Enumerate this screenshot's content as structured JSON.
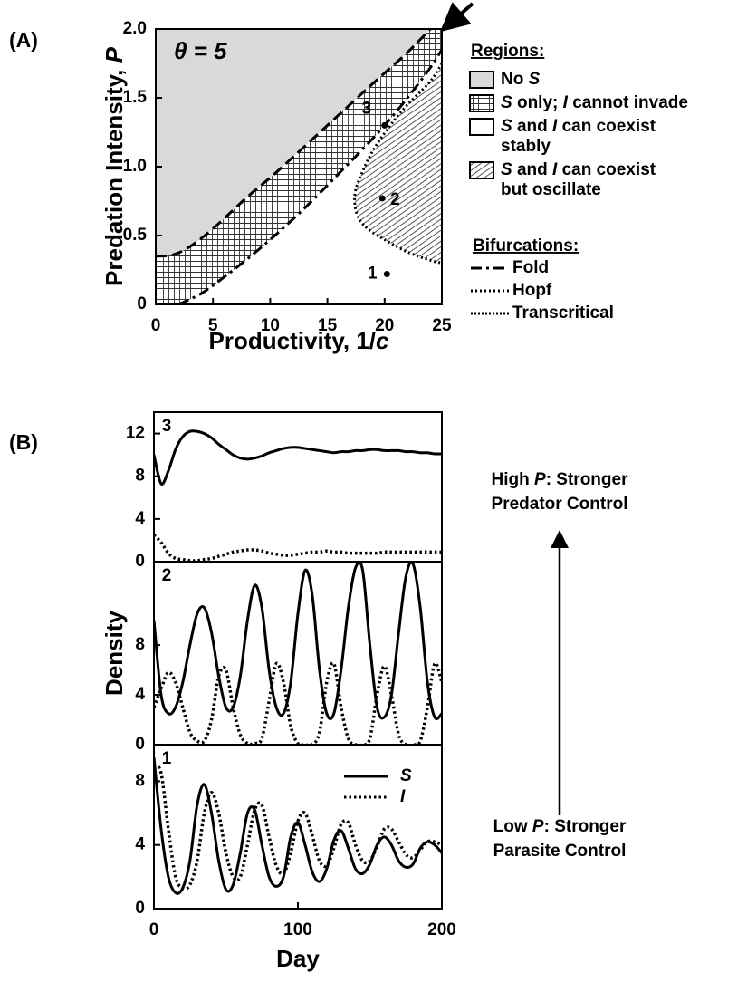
{
  "chart_data": [
    {
      "type": "region",
      "panel": "(A)",
      "annotation": "θ = 5",
      "xlabel": "Productivity, 1/c",
      "ylabel": "Predation Intensity, P",
      "xlim": [
        0,
        25
      ],
      "ylim": [
        0,
        2
      ],
      "xticks": [
        0,
        5,
        10,
        15,
        20,
        25
      ],
      "yticks": [
        0,
        0.5,
        {
          "value": 1,
          "label": "1.0"
        },
        1.5,
        {
          "value": 2,
          "label": "2.0"
        }
      ],
      "boundaries": [
        {
          "dash": "12 6",
          "x": [
            0,
            1.5,
            3,
            5,
            8,
            10,
            12,
            15,
            18,
            20,
            22,
            24
          ],
          "y": [
            0.35,
            0.36,
            0.42,
            0.55,
            0.78,
            0.92,
            1.07,
            1.3,
            1.53,
            1.68,
            1.83,
            2.0
          ]
        },
        {
          "dash": "12 5 3 5",
          "x": [
            2,
            4,
            6,
            8,
            10,
            12,
            14,
            16,
            18,
            20,
            22,
            24,
            25
          ],
          "y": [
            0,
            0.08,
            0.2,
            0.33,
            0.47,
            0.62,
            0.78,
            0.95,
            1.12,
            1.3,
            1.5,
            1.72,
            1.85
          ]
        },
        {
          "dash": "2 3",
          "x": [
            25,
            24,
            22,
            20.5,
            19,
            18,
            17.4,
            17.6,
            18.5,
            20,
            22,
            24,
            25
          ],
          "y": [
            1.75,
            1.62,
            1.45,
            1.3,
            1.12,
            0.95,
            0.8,
            0.65,
            0.55,
            0.47,
            0.38,
            0.32,
            0.3
          ]
        }
      ],
      "regions_title": "Regions:",
      "regions": [
        {
          "name": [
            "No S"
          ],
          "fill": "#d9d9d9"
        },
        {
          "name": [
            "S only; I cannot invade"
          ],
          "fill": "grid"
        },
        {
          "name": [
            "S and I can coexist",
            "stably"
          ],
          "fill": "#ffffff"
        },
        {
          "name": [
            "S and I can coexist",
            "but oscillate"
          ],
          "fill": "hatch"
        }
      ],
      "bifurcations_title": "Bifurcations:",
      "bifurcations": [
        {
          "name": "Fold",
          "dash": "12 5 3 5"
        },
        {
          "name": "Hopf",
          "dash": "2 3"
        },
        {
          "name": "Transcritical",
          "dash": "2 2"
        }
      ],
      "points": [
        {
          "label": "1",
          "x": 20.2,
          "y": 0.22
        },
        {
          "label": "2",
          "x": 19.8,
          "y": 0.77
        },
        {
          "label": "3",
          "x": 20,
          "y": 1.3
        }
      ]
    },
    {
      "type": "line",
      "panel": "(B)",
      "label": "3",
      "xlim": [
        0,
        200
      ],
      "ylim": [
        0,
        14
      ],
      "yticks": [
        0,
        4,
        8,
        12
      ],
      "annotations": [
        [
          "High P: Stronger",
          "Predator Control"
        ],
        [
          "Low P: Stronger",
          "Parasite Control"
        ]
      ],
      "x": [
        0,
        5,
        10,
        15,
        20,
        25,
        30,
        35,
        40,
        45,
        50,
        55,
        60,
        65,
        70,
        75,
        80,
        85,
        90,
        95,
        100,
        105,
        110,
        115,
        120,
        125,
        130,
        135,
        140,
        145,
        150,
        155,
        160,
        165,
        170,
        175,
        180,
        185,
        190,
        195,
        200
      ],
      "series": [
        {
          "name": "S",
          "color": "#000000",
          "style": "solid",
          "values": [
            10,
            7.3,
            8.5,
            10.5,
            11.7,
            12.2,
            12.2,
            12.0,
            11.6,
            11.0,
            10.5,
            10.0,
            9.7,
            9.6,
            9.7,
            9.9,
            10.2,
            10.4,
            10.6,
            10.7,
            10.7,
            10.6,
            10.5,
            10.4,
            10.3,
            10.2,
            10.3,
            10.3,
            10.4,
            10.4,
            10.5,
            10.5,
            10.4,
            10.4,
            10.4,
            10.3,
            10.3,
            10.2,
            10.2,
            10.1,
            10.1
          ]
        },
        {
          "name": "I",
          "color": "#000000",
          "style": "dotted",
          "values": [
            2.5,
            1.8,
            0.8,
            0.3,
            0.2,
            0.1,
            0.1,
            0.2,
            0.3,
            0.5,
            0.7,
            0.9,
            1.0,
            1.1,
            1.1,
            1.0,
            0.8,
            0.7,
            0.6,
            0.6,
            0.7,
            0.8,
            0.9,
            0.9,
            1.0,
            0.9,
            0.9,
            0.8,
            0.8,
            0.8,
            0.8,
            0.8,
            0.9,
            0.9,
            0.9,
            0.9,
            0.9,
            0.9,
            0.9,
            0.9,
            0.9
          ]
        }
      ]
    },
    {
      "type": "line",
      "label": "2",
      "ylabel": "Density",
      "xlim": [
        0,
        200
      ],
      "ylim": [
        0,
        14.7
      ],
      "yticks": [
        0,
        4,
        8
      ],
      "x": [
        0,
        5,
        10,
        15,
        20,
        25,
        30,
        35,
        40,
        45,
        50,
        55,
        60,
        65,
        70,
        75,
        80,
        85,
        90,
        95,
        100,
        105,
        110,
        115,
        120,
        125,
        130,
        135,
        140,
        145,
        150,
        155,
        160,
        165,
        170,
        175,
        180,
        185,
        190,
        195,
        200
      ],
      "series": [
        {
          "name": "S",
          "color": "#000000",
          "style": "solid",
          "values": [
            10,
            4,
            2.5,
            3,
            5,
            8,
            10.5,
            11,
            9,
            5.5,
            3,
            3,
            5.5,
            10,
            12.8,
            11,
            6,
            3,
            2.5,
            5,
            10.5,
            14,
            12,
            6,
            2.5,
            2.5,
            6,
            11,
            14.2,
            14,
            8,
            3,
            2.2,
            4,
            9,
            13.5,
            14.5,
            11,
            5,
            2.2,
            2.5
          ]
        },
        {
          "name": "I",
          "color": "#000000",
          "style": "dotted",
          "values": [
            3,
            4.5,
            5.8,
            5,
            3,
            1,
            0.3,
            0.3,
            2,
            5.5,
            6,
            3,
            0.8,
            0.1,
            0.1,
            0.5,
            3.5,
            6.5,
            5,
            1.5,
            0.1,
            0,
            0,
            1,
            5,
            6.5,
            3,
            0.5,
            0,
            0,
            0.5,
            4,
            6.3,
            4,
            0.8,
            0,
            0,
            0.3,
            3,
            6.5,
            5
          ]
        }
      ]
    },
    {
      "type": "line",
      "label": "1",
      "legend": true,
      "xlabel": "Day",
      "xlim": [
        0,
        200
      ],
      "ylim": [
        0,
        10.3
      ],
      "yticks": [
        0,
        4,
        8
      ],
      "xticks": [
        0,
        100,
        200
      ],
      "x": [
        0,
        5,
        10,
        15,
        20,
        25,
        30,
        35,
        40,
        45,
        50,
        55,
        60,
        65,
        70,
        75,
        80,
        85,
        90,
        95,
        100,
        105,
        110,
        115,
        120,
        125,
        130,
        135,
        140,
        145,
        150,
        155,
        160,
        165,
        170,
        175,
        180,
        185,
        190,
        195,
        200
      ],
      "series": [
        {
          "name": "S",
          "color": "#000000",
          "style": "solid",
          "values": [
            9.5,
            5,
            2,
            1,
            1.3,
            3,
            6.5,
            7.8,
            6,
            3,
            1.2,
            1.5,
            3.5,
            6,
            6.2,
            4,
            2,
            1.4,
            2,
            4.5,
            5.4,
            4,
            2.3,
            1.7,
            2.5,
            4.3,
            4.9,
            3.8,
            2.5,
            2.2,
            2.8,
            4,
            4.5,
            4,
            3,
            2.6,
            2.8,
            3.8,
            4.2,
            4,
            3.5
          ]
        },
        {
          "name": "I",
          "color": "#000000",
          "style": "dotted",
          "values": [
            9,
            8.5,
            5,
            2,
            1.3,
            1.5,
            3,
            6,
            7.3,
            6,
            3.5,
            2,
            2,
            4,
            6.2,
            6.5,
            4.5,
            2.7,
            2.2,
            3.5,
            5.5,
            6,
            4.6,
            3,
            2.7,
            3.8,
            5.3,
            5.4,
            4,
            3,
            3,
            3.9,
            5,
            5,
            4.2,
            3.4,
            3.2,
            3.7,
            4.2,
            4.2,
            4
          ]
        }
      ]
    }
  ]
}
